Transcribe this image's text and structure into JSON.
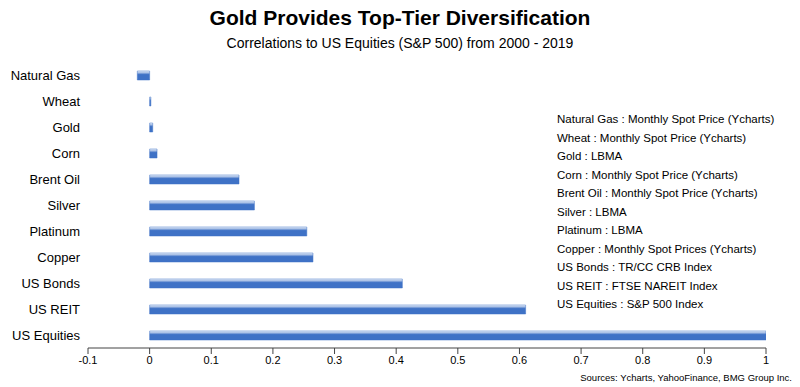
{
  "chart_data": {
    "type": "bar",
    "orientation": "horizontal",
    "title": "Gold Provides Top-Tier Diversification",
    "subtitle": "Correlations to US Equities (S&P 500) from 2000 - 2019",
    "categories": [
      "Natural Gas",
      "Wheat",
      "Gold",
      "Corn",
      "Brent Oil",
      "Silver",
      "Platinum",
      "Copper",
      "US Bonds",
      "US REIT",
      "US Equities"
    ],
    "values": [
      -0.02,
      0.002,
      0.005,
      0.012,
      0.145,
      0.17,
      0.255,
      0.265,
      0.41,
      0.61,
      1.0
    ],
    "color": "#3f72c6",
    "xlim": [
      -0.1,
      1
    ],
    "xticks": [
      -0.1,
      0,
      0.1,
      0.2,
      0.3,
      0.4,
      0.5,
      0.6,
      0.7,
      0.8,
      0.9,
      1
    ],
    "grid": false,
    "annotations": [
      "Natural Gas : Monthly Spot Price (Ycharts)",
      "Wheat : Monthly Spot Price (Ycharts)",
      "Gold : LBMA",
      "Corn : Monthly Spot Price (Ycharts)",
      "Brent Oil : Monthly Spot Price (Ycharts)",
      "Silver : LBMA",
      "Platinum : LBMA",
      "Copper : Monthly Spot Prices (Ycharts)",
      "US Bonds : TR/CC CRB Index",
      "US REIT : FTSE NAREIT Index",
      "US Equities : S&P 500 Index"
    ],
    "source": "Sources: Ycharts, YahooFinance, BMG Group Inc."
  }
}
